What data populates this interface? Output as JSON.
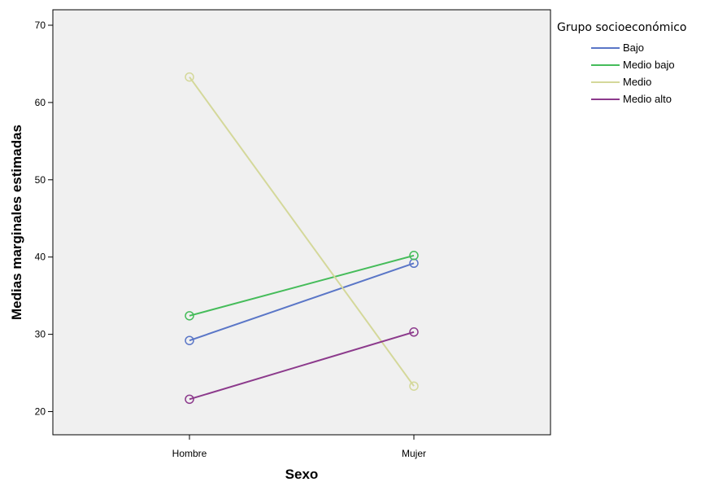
{
  "chart_data": {
    "type": "line",
    "xlabel": "Sexo",
    "ylabel": "Medias marginales estimadas",
    "categories": [
      "Hombre",
      "Mujer"
    ],
    "ylim": [
      17,
      72
    ],
    "yticks": [
      20,
      30,
      40,
      50,
      60,
      70
    ],
    "grid": false,
    "legend": {
      "title": "Grupo socioeconómico",
      "placement": "right"
    },
    "series": [
      {
        "name": "Bajo",
        "color": "#5a76c7",
        "values": [
          29.2,
          39.2
        ]
      },
      {
        "name": "Medio bajo",
        "color": "#45bc5a",
        "values": [
          32.4,
          40.2
        ]
      },
      {
        "name": "Medio",
        "color": "#d4d89a",
        "values": [
          63.3,
          23.3
        ]
      },
      {
        "name": "Medio alto",
        "color": "#8c3a8c",
        "values": [
          21.6,
          30.3
        ]
      }
    ]
  }
}
